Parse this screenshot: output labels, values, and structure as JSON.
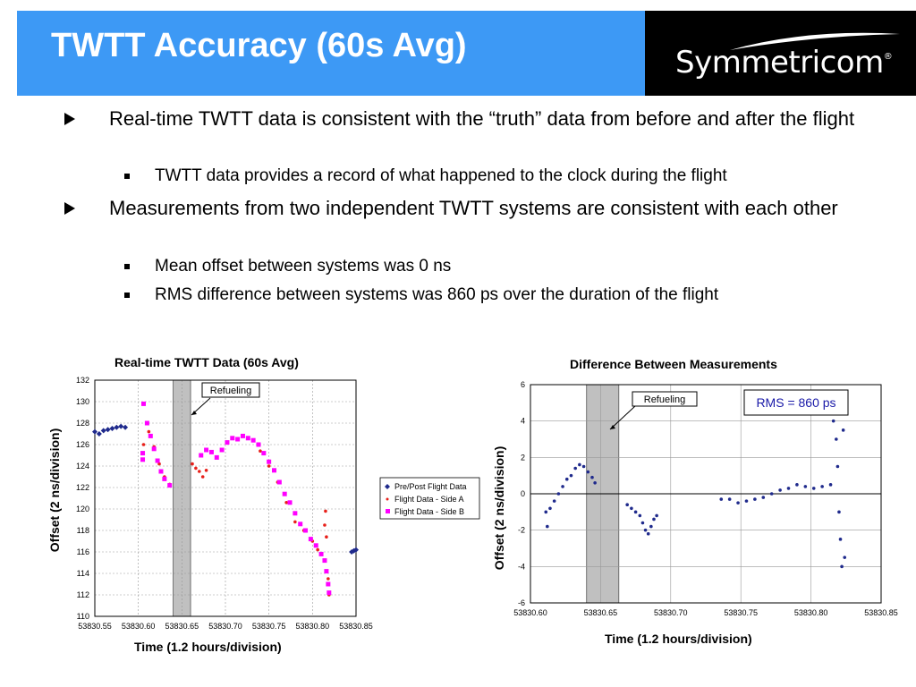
{
  "slide": {
    "title": "TWTT Accuracy (60s Avg)",
    "logo_text": "Symmetricom",
    "logo_reg": "®",
    "bullets": [
      {
        "text": "Real-time TWTT data is consistent with the “truth” data from before and after the flight",
        "sub": [
          "TWTT data provides a record of what happened to the clock during the flight"
        ]
      },
      {
        "text": "Measurements from two independent TWTT systems are consistent with each other",
        "sub": [
          "Mean offset between systems was 0 ns",
          "RMS difference between systems was 860 ps over the duration of the flight"
        ]
      }
    ]
  },
  "colors": {
    "title_bg": "#3d99f5",
    "logo_bg": "#000000",
    "pre_post": "#1f2a8c",
    "side_a": "#e8201a",
    "side_b": "#ff00ff",
    "diff": "#1f2a8c",
    "refuel_band": "#c0c0c0"
  },
  "chart_data": [
    {
      "type": "scatter",
      "title": "Real-time TWTT Data (60s Avg)",
      "xlabel": "Time (1.2 hours/division)",
      "ylabel": "Offset (2 ns/division)",
      "xlim": [
        53830.55,
        53830.85
      ],
      "ylim": [
        110,
        132
      ],
      "xticks": [
        "53830.55",
        "53830.60",
        "53830.65",
        "53830.70",
        "53830.75",
        "53830.80",
        "53830.85"
      ],
      "yticks": [
        "110",
        "112",
        "114",
        "116",
        "118",
        "120",
        "122",
        "124",
        "126",
        "128",
        "130",
        "132"
      ],
      "grid": true,
      "legend_position": "right",
      "annotation": {
        "text": "Refueling",
        "band": [
          53830.64,
          53830.66
        ]
      },
      "series": [
        {
          "name": "Pre/Post Flight Data",
          "marker": "diamond",
          "points": [
            [
              53830.55,
              127.2
            ],
            [
              53830.555,
              127.0
            ],
            [
              53830.56,
              127.3
            ],
            [
              53830.565,
              127.4
            ],
            [
              53830.57,
              127.5
            ],
            [
              53830.575,
              127.6
            ],
            [
              53830.58,
              127.7
            ],
            [
              53830.585,
              127.6
            ],
            [
              53830.845,
              116.0
            ],
            [
              53830.8475,
              116.1
            ],
            [
              53830.85,
              116.2
            ]
          ]
        },
        {
          "name": "Flight Data - Side A",
          "marker": "dot",
          "points": [
            [
              53830.606,
              126.0
            ],
            [
              53830.612,
              127.2
            ],
            [
              53830.618,
              125.8
            ],
            [
              53830.624,
              124.2
            ],
            [
              53830.63,
              123.0
            ],
            [
              53830.636,
              122.3
            ],
            [
              53830.662,
              124.2
            ],
            [
              53830.666,
              123.8
            ],
            [
              53830.67,
              123.5
            ],
            [
              53830.674,
              123.0
            ],
            [
              53830.678,
              123.6
            ],
            [
              53830.74,
              125.4
            ],
            [
              53830.75,
              124.0
            ],
            [
              53830.76,
              122.5
            ],
            [
              53830.77,
              120.6
            ],
            [
              53830.78,
              118.8
            ],
            [
              53830.79,
              118.0
            ],
            [
              53830.8,
              117.0
            ],
            [
              53830.806,
              116.2
            ],
            [
              53830.814,
              118.5
            ],
            [
              53830.815,
              119.8
            ],
            [
              53830.816,
              117.4
            ],
            [
              53830.818,
              113.5
            ],
            [
              53830.819,
              112.0
            ]
          ]
        },
        {
          "name": "Flight Data - Side B",
          "marker": "square",
          "points": [
            [
              53830.606,
              129.8
            ],
            [
              53830.61,
              128.0
            ],
            [
              53830.614,
              126.8
            ],
            [
              53830.618,
              125.6
            ],
            [
              53830.622,
              124.5
            ],
            [
              53830.626,
              123.5
            ],
            [
              53830.63,
              122.8
            ],
            [
              53830.636,
              122.2
            ],
            [
              53830.605,
              125.2
            ],
            [
              53830.605,
              124.6
            ],
            [
              53830.672,
              125.0
            ],
            [
              53830.678,
              125.5
            ],
            [
              53830.684,
              125.3
            ],
            [
              53830.69,
              124.8
            ],
            [
              53830.696,
              125.5
            ],
            [
              53830.702,
              126.2
            ],
            [
              53830.708,
              126.6
            ],
            [
              53830.714,
              126.5
            ],
            [
              53830.72,
              126.8
            ],
            [
              53830.726,
              126.6
            ],
            [
              53830.732,
              126.4
            ],
            [
              53830.738,
              126.0
            ],
            [
              53830.744,
              125.2
            ],
            [
              53830.75,
              124.4
            ],
            [
              53830.756,
              123.6
            ],
            [
              53830.762,
              122.5
            ],
            [
              53830.768,
              121.4
            ],
            [
              53830.774,
              120.6
            ],
            [
              53830.78,
              119.6
            ],
            [
              53830.786,
              118.6
            ],
            [
              53830.792,
              118.0
            ],
            [
              53830.798,
              117.2
            ],
            [
              53830.804,
              116.6
            ],
            [
              53830.81,
              115.8
            ],
            [
              53830.814,
              115.2
            ],
            [
              53830.816,
              114.2
            ],
            [
              53830.818,
              113.0
            ],
            [
              53830.819,
              112.2
            ]
          ]
        }
      ]
    },
    {
      "type": "scatter",
      "title": "Difference Between Measurements",
      "xlabel": "Time (1.2 hours/division)",
      "ylabel": "Offset (2 ns/division)",
      "xlim": [
        53830.6,
        53830.85
      ],
      "ylim": [
        -6,
        6
      ],
      "xticks": [
        "53830.60",
        "53830.65",
        "53830.70",
        "53830.75",
        "53830.80",
        "53830.85"
      ],
      "yticks": [
        "-6",
        "-4",
        "-2",
        "0",
        "2",
        "4",
        "6"
      ],
      "grid": true,
      "annotation": {
        "text": "Refueling",
        "band": [
          53830.64,
          53830.663
        ]
      },
      "label_box": "RMS = 860 ps",
      "series": [
        {
          "marker": "dot",
          "points": [
            [
              53830.611,
              -1.0
            ],
            [
              53830.612,
              -1.8
            ],
            [
              53830.614,
              -0.8
            ],
            [
              53830.617,
              -0.4
            ],
            [
              53830.62,
              0.0
            ],
            [
              53830.623,
              0.4
            ],
            [
              53830.626,
              0.8
            ],
            [
              53830.629,
              1.0
            ],
            [
              53830.632,
              1.4
            ],
            [
              53830.635,
              1.6
            ],
            [
              53830.638,
              1.5
            ],
            [
              53830.641,
              1.2
            ],
            [
              53830.644,
              0.9
            ],
            [
              53830.646,
              0.6
            ],
            [
              53830.669,
              -0.6
            ],
            [
              53830.672,
              -0.8
            ],
            [
              53830.675,
              -1.0
            ],
            [
              53830.678,
              -1.2
            ],
            [
              53830.68,
              -1.6
            ],
            [
              53830.682,
              -2.0
            ],
            [
              53830.684,
              -2.2
            ],
            [
              53830.686,
              -1.8
            ],
            [
              53830.688,
              -1.4
            ],
            [
              53830.69,
              -1.2
            ],
            [
              53830.736,
              -0.3
            ],
            [
              53830.742,
              -0.3
            ],
            [
              53830.748,
              -0.5
            ],
            [
              53830.754,
              -0.4
            ],
            [
              53830.76,
              -0.3
            ],
            [
              53830.766,
              -0.2
            ],
            [
              53830.772,
              0.0
            ],
            [
              53830.778,
              0.2
            ],
            [
              53830.784,
              0.3
            ],
            [
              53830.79,
              0.5
            ],
            [
              53830.796,
              0.4
            ],
            [
              53830.802,
              0.3
            ],
            [
              53830.808,
              0.4
            ],
            [
              53830.814,
              0.5
            ],
            [
              53830.816,
              4.0
            ],
            [
              53830.818,
              3.0
            ],
            [
              53830.819,
              1.5
            ],
            [
              53830.82,
              -1.0
            ],
            [
              53830.821,
              -2.5
            ],
            [
              53830.822,
              -4.0
            ],
            [
              53830.823,
              3.5
            ],
            [
              53830.824,
              -3.5
            ]
          ]
        }
      ]
    }
  ]
}
